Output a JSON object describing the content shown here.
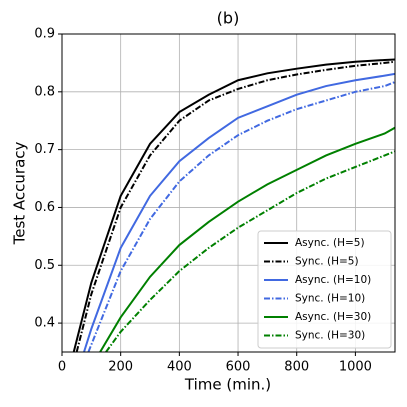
{
  "chart_data": {
    "type": "line",
    "title": "(b)",
    "x_label": "Time (min.)",
    "y_label": "Test Accuracy",
    "xlim": [
      0,
      1135
    ],
    "ylim": [
      0.35,
      0.9
    ],
    "xticks": [
      0,
      200,
      400,
      600,
      800,
      1000
    ],
    "yticks": [
      0.4,
      0.5,
      0.6,
      0.7,
      0.8,
      0.9
    ],
    "grid": true,
    "legend": "lower right",
    "series": [
      {
        "name": "Async. (H=5)",
        "color": "#000000",
        "dash": "solid",
        "x": [
          40,
          100,
          200,
          300,
          400,
          500,
          600,
          700,
          800,
          900,
          1000,
          1100,
          1135
        ],
        "values": [
          0.35,
          0.47,
          0.62,
          0.71,
          0.765,
          0.795,
          0.82,
          0.832,
          0.84,
          0.847,
          0.852,
          0.855,
          0.856
        ]
      },
      {
        "name": "Sync. (H=5)",
        "color": "#000000",
        "dash": "dashdot",
        "x": [
          50,
          100,
          200,
          300,
          400,
          500,
          600,
          700,
          800,
          900,
          1000,
          1100,
          1135
        ],
        "values": [
          0.35,
          0.45,
          0.6,
          0.69,
          0.75,
          0.785,
          0.805,
          0.82,
          0.83,
          0.838,
          0.845,
          0.85,
          0.852
        ]
      },
      {
        "name": "Async. (H=10)",
        "color": "#4169e1",
        "dash": "solid",
        "x": [
          75,
          100,
          200,
          300,
          400,
          500,
          600,
          700,
          800,
          900,
          1000,
          1100,
          1135
        ],
        "values": [
          0.35,
          0.39,
          0.53,
          0.62,
          0.68,
          0.72,
          0.755,
          0.775,
          0.795,
          0.81,
          0.82,
          0.828,
          0.831
        ]
      },
      {
        "name": "Sync. (H=10)",
        "color": "#4169e1",
        "dash": "dashdot",
        "x": [
          90,
          200,
          300,
          400,
          500,
          600,
          700,
          800,
          900,
          1000,
          1100,
          1135
        ],
        "values": [
          0.35,
          0.49,
          0.58,
          0.645,
          0.69,
          0.725,
          0.75,
          0.77,
          0.785,
          0.8,
          0.81,
          0.817
        ]
      },
      {
        "name": "Async. (H=30)",
        "color": "#008000",
        "dash": "solid",
        "x": [
          130,
          200,
          300,
          400,
          500,
          600,
          700,
          800,
          900,
          1000,
          1100,
          1135
        ],
        "values": [
          0.35,
          0.41,
          0.48,
          0.535,
          0.575,
          0.61,
          0.64,
          0.665,
          0.69,
          0.71,
          0.728,
          0.738
        ]
      },
      {
        "name": "Sync. (H=30)",
        "color": "#008000",
        "dash": "dashdot",
        "x": [
          150,
          200,
          300,
          400,
          500,
          600,
          700,
          800,
          900,
          1000,
          1100,
          1135
        ],
        "values": [
          0.35,
          0.385,
          0.44,
          0.49,
          0.53,
          0.565,
          0.595,
          0.625,
          0.65,
          0.67,
          0.69,
          0.697
        ]
      }
    ]
  }
}
